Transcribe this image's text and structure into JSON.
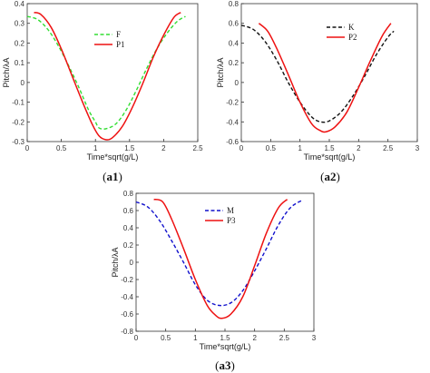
{
  "chart_data": [
    {
      "type": "line",
      "caption_prefix": "(",
      "caption_label": "a1",
      "caption_suffix": ")",
      "xlabel": "Time*sqrt(g/L)",
      "ylabel": "Pitch/λA",
      "xlim": [
        0,
        2.5
      ],
      "ylim": [
        -0.3,
        0.4
      ],
      "xticks": [
        "0",
        "0.5",
        "1",
        "1.5",
        "2",
        "2.5"
      ],
      "yticks": [
        "-0.3",
        "-0.2",
        "-0.1",
        "0",
        "0.1",
        "0.2",
        "0.3",
        "0.4"
      ],
      "legend_position": "top-center",
      "series": [
        {
          "name": "F",
          "color": "#33dd33",
          "style": "dashed",
          "x": [
            0.0,
            0.15,
            0.3,
            0.45,
            0.6,
            0.75,
            0.9,
            1.0,
            1.05,
            1.15,
            1.3,
            1.45,
            1.6,
            1.75,
            1.9,
            2.05,
            2.2,
            2.32
          ],
          "y": [
            0.335,
            0.32,
            0.27,
            0.19,
            0.09,
            -0.02,
            -0.14,
            -0.2,
            -0.23,
            -0.235,
            -0.21,
            -0.14,
            -0.04,
            0.07,
            0.17,
            0.25,
            0.31,
            0.335
          ]
        },
        {
          "name": "P1",
          "color": "#ee1111",
          "style": "solid",
          "x": [
            0.1,
            0.2,
            0.35,
            0.5,
            0.65,
            0.8,
            0.95,
            1.05,
            1.15,
            1.25,
            1.4,
            1.55,
            1.7,
            1.85,
            2.0,
            2.15,
            2.25
          ],
          "y": [
            0.355,
            0.345,
            0.28,
            0.17,
            0.04,
            -0.09,
            -0.21,
            -0.27,
            -0.29,
            -0.28,
            -0.22,
            -0.12,
            0.0,
            0.13,
            0.24,
            0.33,
            0.355
          ]
        }
      ]
    },
    {
      "type": "line",
      "caption_prefix": "(",
      "caption_label": "a2",
      "caption_suffix": ")",
      "xlabel": "Time*sqrt(g/L)",
      "ylabel": "Pitch/λA",
      "xlim": [
        0,
        3
      ],
      "ylim": [
        -0.6,
        0.8
      ],
      "xticks": [
        "0",
        "0.5",
        "1",
        "1.5",
        "2",
        "2.5",
        "3"
      ],
      "yticks": [
        "-0.6",
        "-0.4",
        "-0.2",
        "0",
        "0.2",
        "0.4",
        "0.6",
        "0.8"
      ],
      "legend_position": "top-center",
      "series": [
        {
          "name": "K",
          "color": "#111111",
          "style": "dashed",
          "x": [
            0.0,
            0.2,
            0.4,
            0.6,
            0.8,
            1.0,
            1.2,
            1.35,
            1.5,
            1.7,
            1.9,
            2.1,
            2.3,
            2.5,
            2.6
          ],
          "y": [
            0.58,
            0.54,
            0.42,
            0.23,
            0.0,
            -0.2,
            -0.35,
            -0.4,
            -0.39,
            -0.3,
            -0.14,
            0.06,
            0.28,
            0.46,
            0.52
          ]
        },
        {
          "name": "P2",
          "color": "#ee1111",
          "style": "solid",
          "x": [
            0.3,
            0.45,
            0.6,
            0.8,
            1.0,
            1.2,
            1.35,
            1.45,
            1.6,
            1.8,
            2.0,
            2.2,
            2.4,
            2.55
          ],
          "y": [
            0.6,
            0.52,
            0.35,
            0.08,
            -0.2,
            -0.42,
            -0.49,
            -0.5,
            -0.45,
            -0.3,
            -0.05,
            0.22,
            0.47,
            0.6
          ]
        }
      ]
    },
    {
      "type": "line",
      "caption_prefix": "(",
      "caption_label": "a3",
      "caption_suffix": ")",
      "xlabel": "Time*sqrt(g/L)",
      "ylabel": "Pitch/λA",
      "xlim": [
        0,
        3
      ],
      "ylim": [
        -0.8,
        0.8
      ],
      "xticks": [
        "0",
        "0.5",
        "1",
        "1.5",
        "2",
        "2.5",
        "3"
      ],
      "yticks": [
        "-0.8",
        "-0.6",
        "-0.4",
        "-0.2",
        "0",
        "0.2",
        "0.4",
        "0.6",
        "0.8"
      ],
      "legend_position": "top-center",
      "series": [
        {
          "name": "M",
          "color": "#1111cc",
          "style": "dashed",
          "x": [
            0.0,
            0.2,
            0.4,
            0.6,
            0.8,
            1.0,
            1.2,
            1.4,
            1.6,
            1.8,
            2.0,
            2.2,
            2.4,
            2.6,
            2.8
          ],
          "y": [
            0.7,
            0.64,
            0.48,
            0.25,
            0.0,
            -0.26,
            -0.44,
            -0.5,
            -0.47,
            -0.33,
            -0.1,
            0.16,
            0.43,
            0.63,
            0.72
          ]
        },
        {
          "name": "P3",
          "color": "#ee1111",
          "style": "solid",
          "x": [
            0.3,
            0.45,
            0.6,
            0.8,
            1.0,
            1.2,
            1.35,
            1.45,
            1.6,
            1.8,
            2.0,
            2.2,
            2.4,
            2.55
          ],
          "y": [
            0.73,
            0.7,
            0.5,
            0.16,
            -0.2,
            -0.5,
            -0.62,
            -0.65,
            -0.6,
            -0.4,
            -0.04,
            0.34,
            0.63,
            0.73
          ]
        }
      ]
    }
  ]
}
